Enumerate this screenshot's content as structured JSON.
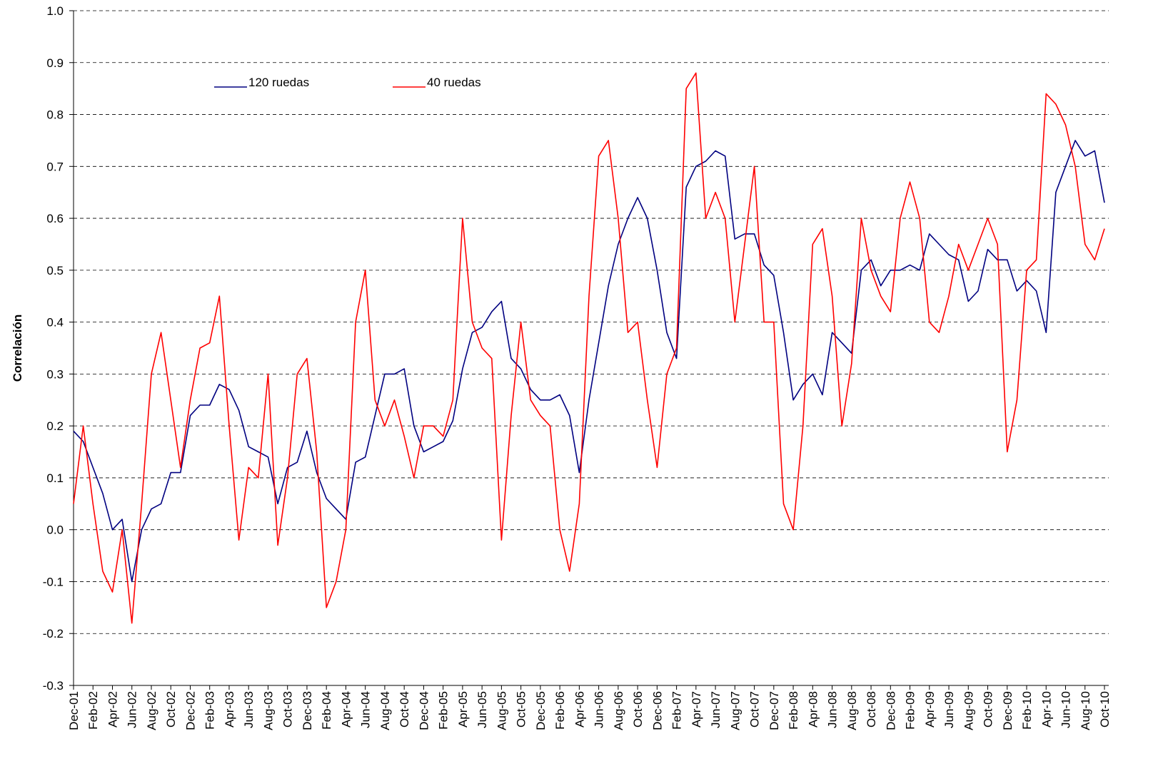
{
  "chart_data": {
    "type": "line",
    "y_label": "Correlación",
    "ylim": [
      -0.3,
      1.0
    ],
    "yticks": [
      -0.3,
      -0.2,
      -0.1,
      {
        "value": 0,
        "label": "0.0"
      },
      0.1,
      0.2,
      0.3,
      0.4,
      0.5,
      0.6,
      0.7,
      0.8,
      0.9,
      {
        "value": 1,
        "label": "1.0"
      }
    ],
    "grid": true,
    "legend": "top",
    "categories": [
      "Dec-01",
      null,
      "Feb-02",
      null,
      "Apr-02",
      null,
      "Jun-02",
      null,
      "Aug-02",
      null,
      "Oct-02",
      null,
      "Dec-02",
      null,
      "Feb-03",
      null,
      "Apr-03",
      null,
      "Jun-03",
      null,
      "Aug-03",
      null,
      "Oct-03",
      null,
      "Dec-03",
      null,
      "Feb-04",
      null,
      "Apr-04",
      null,
      "Jun-04",
      null,
      "Aug-04",
      null,
      "Oct-04",
      null,
      "Dec-04",
      null,
      "Feb-05",
      null,
      "Apr-05",
      null,
      "Jun-05",
      null,
      "Aug-05",
      null,
      "Oct-05",
      null,
      "Dec-05",
      null,
      "Feb-06",
      null,
      "Apr-06",
      null,
      "Jun-06",
      null,
      "Aug-06",
      null,
      "Oct-06",
      null,
      "Dec-06",
      null,
      "Feb-07",
      null,
      "Apr-07",
      null,
      "Jun-07",
      null,
      "Aug-07",
      null,
      "Oct-07",
      null,
      "Dec-07",
      null,
      "Feb-08",
      null,
      "Apr-08",
      null,
      "Jun-08",
      null,
      "Aug-08",
      null,
      "Oct-08",
      null,
      "Dec-08",
      null,
      "Feb-09",
      null,
      "Apr-09",
      null,
      "Jun-09",
      null,
      "Aug-09",
      null,
      "Oct-09",
      null,
      "Dec-09",
      null,
      "Feb-10",
      null,
      "Apr-10",
      null,
      "Jun-10",
      null,
      "Aug-10",
      null,
      "Oct-10"
    ],
    "series": [
      {
        "name": "120 ruedas",
        "color": "#000080",
        "values": [
          0.19,
          0.17,
          0.12,
          0.07,
          0.0,
          0.02,
          -0.1,
          0.0,
          0.04,
          0.05,
          0.11,
          0.11,
          0.22,
          0.24,
          0.24,
          0.28,
          0.27,
          0.23,
          0.16,
          0.15,
          0.14,
          0.05,
          0.12,
          0.13,
          0.19,
          0.11,
          0.06,
          0.04,
          0.02,
          0.13,
          0.14,
          0.22,
          0.3,
          0.3,
          0.31,
          0.2,
          0.15,
          0.16,
          0.17,
          0.21,
          0.31,
          0.38,
          0.39,
          0.42,
          0.44,
          0.33,
          0.31,
          0.27,
          0.25,
          0.25,
          0.26,
          0.22,
          0.11,
          0.25,
          0.36,
          0.47,
          0.55,
          0.6,
          0.64,
          0.6,
          0.5,
          0.38,
          0.33,
          0.66,
          0.7,
          0.71,
          0.73,
          0.72,
          0.56,
          0.57,
          0.57,
          0.51,
          0.49,
          0.38,
          0.25,
          0.28,
          0.3,
          0.26,
          0.38,
          0.36,
          0.34,
          0.5,
          0.52,
          0.47,
          0.5,
          0.5,
          0.51,
          0.5,
          0.57,
          0.55,
          0.53,
          0.52,
          0.44,
          0.46,
          0.54,
          0.52,
          0.52,
          0.46,
          0.48,
          0.46,
          0.38,
          0.65,
          0.7,
          0.75,
          0.72,
          0.73,
          0.63
        ]
      },
      {
        "name": "40 ruedas",
        "color": "#ff0000",
        "values": [
          0.05,
          0.2,
          0.05,
          -0.08,
          -0.12,
          0.0,
          -0.18,
          0.05,
          0.3,
          0.38,
          0.25,
          0.12,
          0.25,
          0.35,
          0.36,
          0.45,
          0.2,
          -0.02,
          0.12,
          0.1,
          0.3,
          -0.03,
          0.1,
          0.3,
          0.33,
          0.15,
          -0.15,
          -0.1,
          0.0,
          0.4,
          0.5,
          0.25,
          0.2,
          0.25,
          0.18,
          0.1,
          0.2,
          0.2,
          0.18,
          0.25,
          0.6,
          0.4,
          0.35,
          0.33,
          -0.02,
          0.22,
          0.4,
          0.25,
          0.22,
          0.2,
          0.0,
          -0.08,
          0.05,
          0.45,
          0.72,
          0.75,
          0.6,
          0.38,
          0.4,
          0.25,
          0.12,
          0.3,
          0.35,
          0.85,
          0.88,
          0.6,
          0.65,
          0.6,
          0.4,
          0.55,
          0.7,
          0.4,
          0.4,
          0.05,
          0.0,
          0.2,
          0.55,
          0.58,
          0.45,
          0.2,
          0.32,
          0.6,
          0.5,
          0.45,
          0.42,
          0.6,
          0.67,
          0.6,
          0.4,
          0.38,
          0.45,
          0.55,
          0.5,
          0.55,
          0.6,
          0.55,
          0.15,
          0.25,
          0.5,
          0.52,
          0.84,
          0.82,
          0.78,
          0.7,
          0.55,
          0.52,
          0.58
        ]
      }
    ]
  }
}
